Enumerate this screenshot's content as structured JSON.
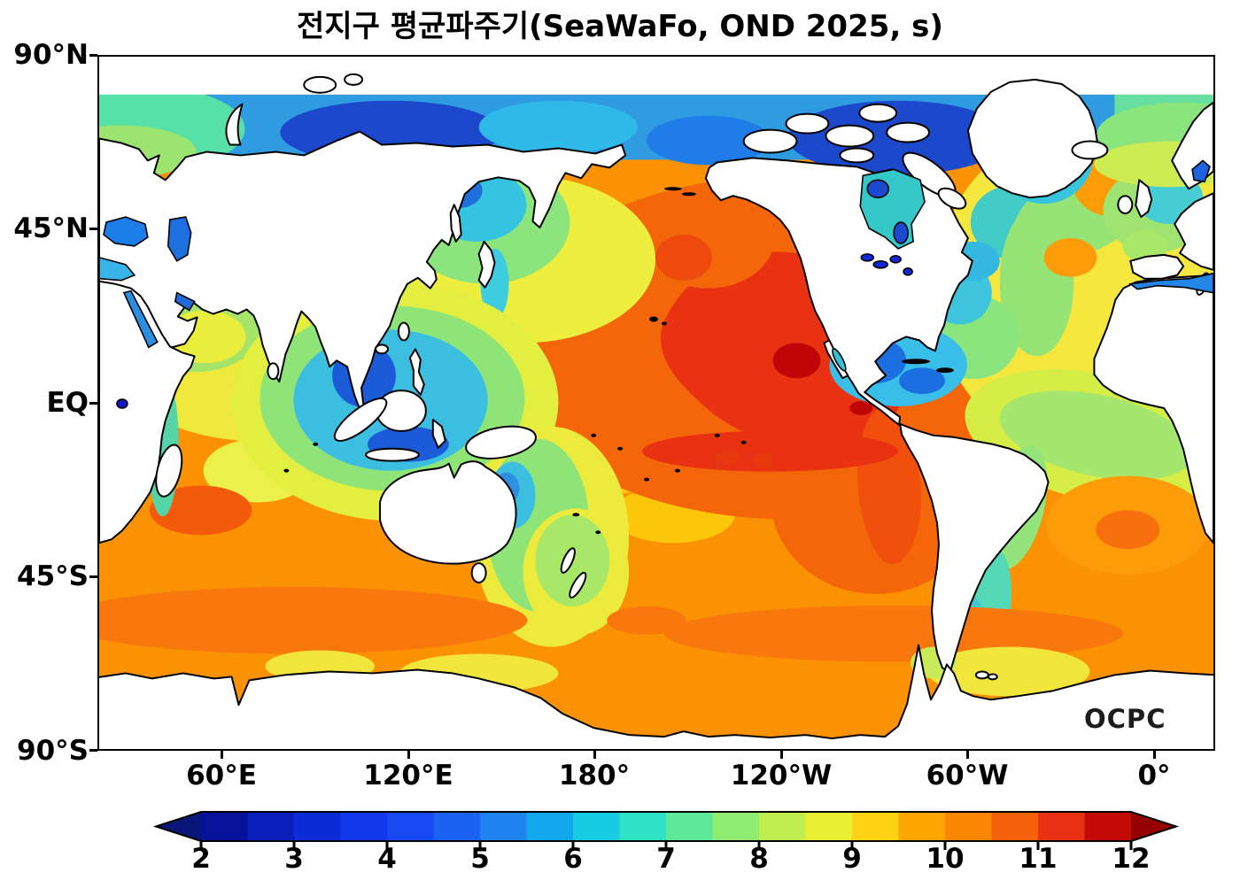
{
  "title": "전지구 평균파주기(SeaWaFo, OND 2025, s)",
  "logo": "OCPC",
  "axes": {
    "lat_ticks": [
      "90°N",
      "45°N",
      "EQ",
      "45°S",
      "90°S"
    ],
    "lon_ticks": [
      "60°E",
      "120°E",
      "180°",
      "120°W",
      "60°W",
      "0°"
    ]
  },
  "colorbar": {
    "units": "s",
    "min": 2,
    "max": 12,
    "tick_labels": [
      "2",
      "3",
      "4",
      "5",
      "6",
      "7",
      "8",
      "9",
      "10",
      "11",
      "12"
    ],
    "segment_colors": [
      "#06129a",
      "#0a1ebc",
      "#0e2bd8",
      "#1238ec",
      "#164af0",
      "#1a62f2",
      "#1e84f0",
      "#12a8ee",
      "#16cbe2",
      "#30e2c4",
      "#5ee99a",
      "#8fec70",
      "#c0ee50",
      "#e9ee32",
      "#ffd214",
      "#fda602",
      "#fb8604",
      "#f4630a",
      "#e93113",
      "#c30b06"
    ],
    "left_arrow_color": "#081678",
    "right_arrow_color": "#960000"
  },
  "map_palette": {
    "ocean_base_orange": "#fb9203",
    "max_red": "#e83212",
    "dark_red_core": "#be0606",
    "yellow": "#f2e63c",
    "green": "#8fe478",
    "cyan": "#3cbee0",
    "deep_blue": "#1b5bd8",
    "land": "#ffffff",
    "coastline": "#000000"
  },
  "chart_data": {
    "type": "heatmap",
    "title": "전지구 평균파주기(SeaWaFo, OND 2025, s)",
    "variable": "global mean wave period",
    "source_model": "SeaWaFo",
    "season": "OND 2025",
    "units": "s",
    "projection": "equirectangular, Pacific-centered (map spans 20°E eastward to 20°E)",
    "colorbar_range": [
      2,
      12
    ],
    "colorbar_tick_step": 1,
    "colorbar_segment_step": 0.5,
    "lat_ticks": [
      "90°N",
      "45°N",
      "EQ",
      "45°S",
      "90°S"
    ],
    "lon_ticks": [
      "60°E",
      "120°E",
      "180°",
      "120°W",
      "60°W",
      "0°"
    ],
    "data_coverage": "ocean only, approx 80°N to Antarctic coast; land masked white",
    "regional_values_s": {
      "arctic_ocean_band": 3.5,
      "barents_norwegian_sea": 6.5,
      "sea_of_okhotsk": 5.5,
      "northwest_pacific": 8.5,
      "north_pacific_center": 10,
      "northeast_pacific_off_mexico_max": 11,
      "gulf_of_alaska": 9.5,
      "hudson_bay": 6,
      "caribbean_gulf_of_mexico": 5,
      "north_atlantic": 8.5,
      "mediterranean_sea": 4.5,
      "baltic_sea": 3.5,
      "black_sea": 4,
      "red_sea_persian_gulf": 4,
      "arabian_sea": 7.5,
      "bay_of_bengal": 7,
      "indonesian_seas": 4,
      "coral_tasman_sea": 7,
      "south_indian_ocean": 9.5,
      "equatorial_atlantic": 7.5,
      "south_atlantic": 9,
      "patagonian_shelf": 6.5,
      "southern_ocean": 10
    },
    "notes": "Filled-contour world map; highest periods (red, ~10.5-11 s) in eastern tropical North Pacific; lowest (dark blue, ~2-4 s) in enclosed seas and Arctic; broad orange 9.5-10.5 s across Southern Ocean."
  }
}
